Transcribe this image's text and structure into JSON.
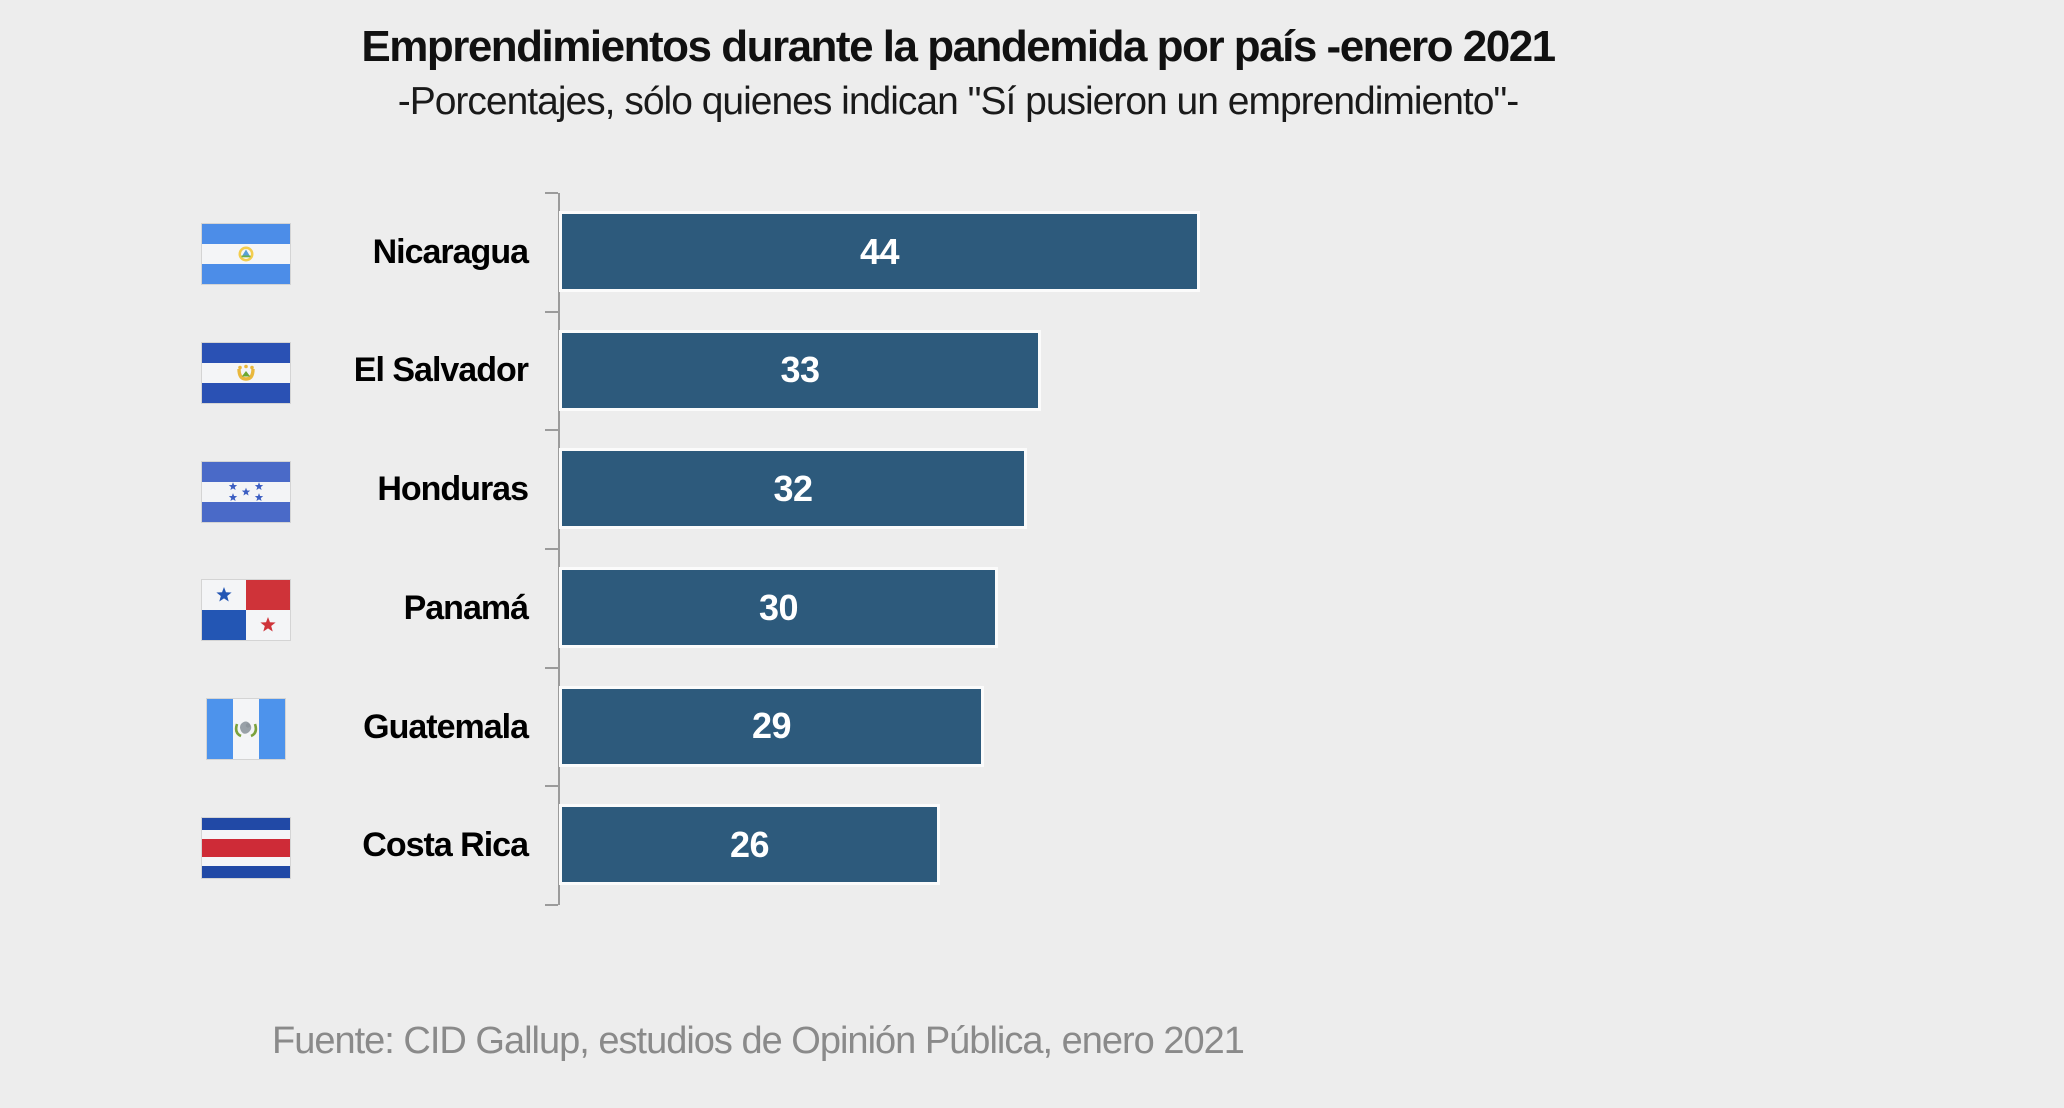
{
  "title": "Emprendimientos durante la pandemida por país -enero 2021",
  "subtitle": "-Porcentajes, sólo quienes indican \"Sí pusieron un emprendimiento\"-",
  "source": "Fuente: CID Gallup, estudios de Opinión Pública, enero 2021",
  "colors": {
    "background": "#EDEDED",
    "bar": "#2D5A7C",
    "bar_outline": "#FBFBFB",
    "axis": "#9B9B9B",
    "value_text": "#FFFFFF",
    "source_text": "#8A8A8A"
  },
  "chart_data": {
    "type": "bar",
    "orientation": "horizontal",
    "title": "Emprendimientos durante la pandemida por país -enero 2021",
    "subtitle": "-Porcentajes, sólo quienes indican \"Sí pusieron un emprendimiento\"-",
    "categories": [
      "Nicaragua",
      "El Salvador",
      "Honduras",
      "Panamá",
      "Guatemala",
      "Costa Rica"
    ],
    "values": [
      44,
      33,
      32,
      30,
      29,
      26
    ],
    "value_labels_position": "inside-center",
    "flag_icons": [
      "nicaragua-flag-icon",
      "el-salvador-flag-icon",
      "honduras-flag-icon",
      "panama-flag-icon",
      "guatemala-flag-icon",
      "costa-rica-flag-icon"
    ],
    "xlabel": "",
    "ylabel": "",
    "xlim": [
      0,
      44
    ],
    "grid": false,
    "legend": false
  }
}
